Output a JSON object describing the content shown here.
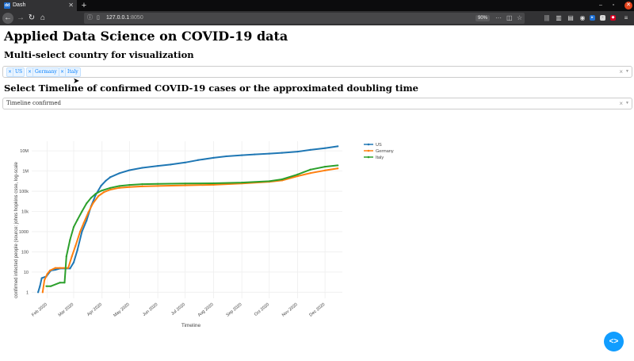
{
  "browser": {
    "tab_title": "Dash",
    "tab_favicon": "dash-favicon",
    "url_host": "127.0.0.1",
    "url_port": ":8050",
    "zoom": "90%"
  },
  "page": {
    "title": "Applied Data Science on COVID-19 data",
    "country_heading": "Multi-select country for visualization",
    "countries_selected": [
      "US",
      "Germany",
      "Italy"
    ],
    "timeline_heading": "Select Timeline of confirmed COVID-19 cases or the approximated doubling time",
    "timeline_value": "Timeline confirmed"
  },
  "colors": {
    "US": "#1f77b4",
    "Germany": "#ff7f0e",
    "Italy": "#2ca02c",
    "accent": "#119dff"
  },
  "chart_data": {
    "type": "line",
    "xlabel": "Timeline",
    "ylabel": "confirmed infected people (source: johns hopkins csse, log-scale",
    "yscale": "log",
    "ylim": [
      0.5,
      30000000
    ],
    "xlim": [
      "2020-01-15",
      "2020-12-20"
    ],
    "grid": true,
    "legend_position": "top-right",
    "x_ticks": [
      "Feb 2020",
      "Mar 2020",
      "Apr 2020",
      "May 2020",
      "Jun 2020",
      "Jul 2020",
      "Aug 2020",
      "Sep 2020",
      "Oct 2020",
      "Nov 2020",
      "Dec 2020"
    ],
    "y_ticks": [
      "1",
      "10",
      "100",
      "1000",
      "10k",
      "100k",
      "1M",
      "10M"
    ],
    "series": [
      {
        "name": "US",
        "x": [
          "2020-01-22",
          "2020-01-24",
          "2020-01-26",
          "2020-01-31",
          "2020-02-05",
          "2020-02-10",
          "2020-02-15",
          "2020-02-21",
          "2020-02-26",
          "2020-03-01",
          "2020-03-05",
          "2020-03-10",
          "2020-03-15",
          "2020-03-20",
          "2020-03-25",
          "2020-03-31",
          "2020-04-05",
          "2020-04-10",
          "2020-04-20",
          "2020-05-01",
          "2020-05-15",
          "2020-06-01",
          "2020-06-15",
          "2020-07-01",
          "2020-07-15",
          "2020-08-01",
          "2020-08-15",
          "2020-09-01",
          "2020-09-15",
          "2020-10-01",
          "2020-10-15",
          "2020-11-01",
          "2020-11-15",
          "2020-12-01",
          "2020-12-15"
        ],
        "y": [
          1,
          2,
          5,
          6,
          12,
          13,
          15,
          15,
          15,
          30,
          120,
          1000,
          3500,
          18000,
          65000,
          190000,
          330000,
          500000,
          780000,
          1100000,
          1450000,
          1800000,
          2100000,
          2650000,
          3500000,
          4550000,
          5400000,
          6100000,
          6700000,
          7300000,
          8000000,
          9200000,
          11200000,
          13700000,
          16800000
        ]
      },
      {
        "name": "Germany",
        "x": [
          "2020-01-27",
          "2020-01-29",
          "2020-02-01",
          "2020-02-04",
          "2020-02-10",
          "2020-02-15",
          "2020-02-24",
          "2020-02-28",
          "2020-03-03",
          "2020-03-08",
          "2020-03-12",
          "2020-03-17",
          "2020-03-22",
          "2020-03-28",
          "2020-04-03",
          "2020-04-10",
          "2020-04-20",
          "2020-05-01",
          "2020-05-15",
          "2020-06-01",
          "2020-07-01",
          "2020-08-01",
          "2020-09-01",
          "2020-10-01",
          "2020-10-15",
          "2020-11-01",
          "2020-11-15",
          "2020-12-01",
          "2020-12-15"
        ],
        "y": [
          1,
          4,
          8,
          12,
          16,
          16,
          16,
          60,
          200,
          1000,
          2700,
          9000,
          25000,
          58000,
          90000,
          120000,
          148000,
          163000,
          175000,
          183000,
          196000,
          210000,
          245000,
          295000,
          345000,
          560000,
          790000,
          1080000,
          1350000
        ]
      },
      {
        "name": "Italy",
        "x": [
          "2020-01-31",
          "2020-02-05",
          "2020-02-15",
          "2020-02-20",
          "2020-02-22",
          "2020-02-26",
          "2020-03-01",
          "2020-03-05",
          "2020-03-10",
          "2020-03-15",
          "2020-03-20",
          "2020-03-25",
          "2020-03-31",
          "2020-04-10",
          "2020-04-20",
          "2020-05-01",
          "2020-05-15",
          "2020-06-01",
          "2020-07-01",
          "2020-08-01",
          "2020-09-01",
          "2020-10-01",
          "2020-10-15",
          "2020-11-01",
          "2020-11-15",
          "2020-12-01",
          "2020-12-15"
        ],
        "y": [
          2,
          2,
          3,
          3,
          60,
          400,
          1700,
          3800,
          10000,
          25000,
          47000,
          75000,
          105000,
          147000,
          182000,
          206000,
          224000,
          233000,
          241000,
          248000,
          270000,
          315000,
          390000,
          680000,
          1180000,
          1640000,
          1910000
        ]
      }
    ]
  }
}
